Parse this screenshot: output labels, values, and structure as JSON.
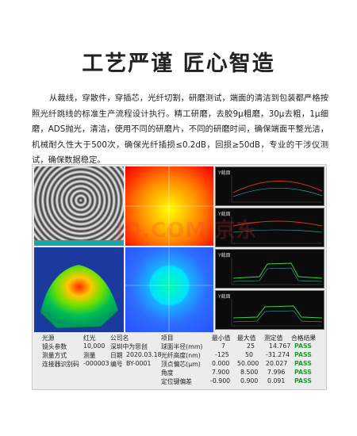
{
  "title": "工艺严谨 匠心智造",
  "paragraph": "从裁线，穿散件，穿插芯，光纤切割，研磨测试，端面的清洁到包装都严格按照光纤跳线的标准生产流程设计执行。精工研磨，去胶9μ粗磨，30μ去粗，1μ细磨，ADS抛光，清洁，使用不同的研磨片，不同的研磨时间，确保端面平整光洁，机械耐久性大于500次，确保光纤插损≤0.2dB，回损≥50dB，专业的干涉仪测试，确保数据稳定。",
  "watermark": "JD.COM 京东",
  "graph_label": "Y截面",
  "left_info": [
    {
      "label": "光源",
      "value": "红光",
      "label2": "公司名",
      "value2": ""
    },
    {
      "label": "镜头参数",
      "value": "10,000",
      "label2": "深圳中为思创",
      "value2": ""
    },
    {
      "label": "测量方式",
      "value": "测量",
      "label2": "日期",
      "value2": "2020.03.18"
    },
    {
      "label": "连接器识别码",
      "value": "-000003",
      "label2": "编号",
      "value2": "BY-0001"
    }
  ],
  "results": {
    "headers": [
      "项目",
      "最小值",
      "最大值",
      "测定值",
      "合格结果"
    ],
    "rows": [
      [
        "球面半径(mm)",
        "7",
        "25",
        "14.767",
        "PASS"
      ],
      [
        "光纤高度(nm)",
        "-125",
        "50",
        "-31.274",
        "PASS"
      ],
      [
        "顶点偏芯(μm)",
        "0.000",
        "50.000",
        "20.027",
        "PASS"
      ],
      [
        "角度",
        "7.900",
        "8.500",
        "7.996",
        "PASS"
      ],
      [
        "定位键偏差",
        "-0.900",
        "0.900",
        "0.091",
        "PASS"
      ]
    ]
  },
  "colors": {
    "pass": "#1e9d2e",
    "panel": "#ececec"
  }
}
